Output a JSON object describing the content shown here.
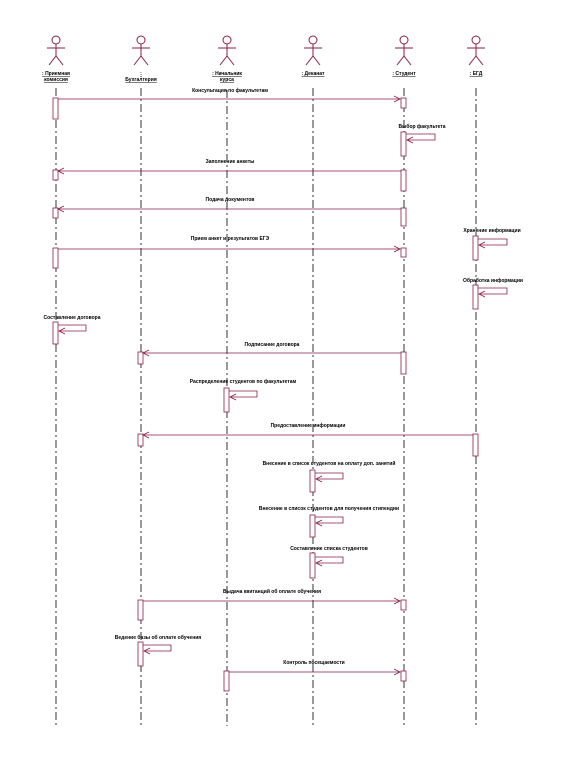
{
  "colors": {
    "line": "#8a1e4a",
    "lifeline": "#000000",
    "text": "#000000"
  },
  "actors": [
    {
      "id": "committee",
      "label": ": Приемная комиссия"
    },
    {
      "id": "accounting",
      "label": ": Бухгалтерия"
    },
    {
      "id": "head",
      "label": ": Начальник курса"
    },
    {
      "id": "dean",
      "label": ": Деканат"
    },
    {
      "id": "student",
      "label": ": Студент"
    },
    {
      "id": "egd",
      "label": ": ЕГД"
    }
  ],
  "messages": [
    {
      "label": "Консультация по факультетам",
      "from": "committee",
      "to": "student"
    },
    {
      "label": "Выбор факультета",
      "from": "student",
      "to": "student"
    },
    {
      "label": "Заполнение анкеты",
      "from": "student",
      "to": "committee"
    },
    {
      "label": "Подача документов",
      "from": "student",
      "to": "committee"
    },
    {
      "label": "Прием анкет и результатов ЕГЭ",
      "from": "committee",
      "to": "student"
    },
    {
      "label": "Хранение информации",
      "from": "egd",
      "to": "egd"
    },
    {
      "label": "Обработка информации",
      "from": "egd",
      "to": "egd"
    },
    {
      "label": "Составление договора",
      "from": "committee",
      "to": "committee"
    },
    {
      "label": "Подписание договора",
      "from": "student",
      "to": "accounting"
    },
    {
      "label": "Распределение студентов по факультетам",
      "from": "head",
      "to": "head"
    },
    {
      "label": "Предоставление информации",
      "from": "egd",
      "to": "accounting"
    },
    {
      "label": "Внесение в список студентов на оплату доп. занятий",
      "from": "dean",
      "to": "dean"
    },
    {
      "label": "Внесение в список студентов для получения стипендии",
      "from": "dean",
      "to": "dean"
    },
    {
      "label": "Составление списка студентов",
      "from": "dean",
      "to": "dean"
    },
    {
      "label": "Выдача квитанций об оплате обучения",
      "from": "accounting",
      "to": "student"
    },
    {
      "label": "Ведение базы об оплате обучения",
      "from": "accounting",
      "to": "accounting"
    },
    {
      "label": "Контроль посещаемости",
      "from": "head",
      "to": "student"
    }
  ]
}
